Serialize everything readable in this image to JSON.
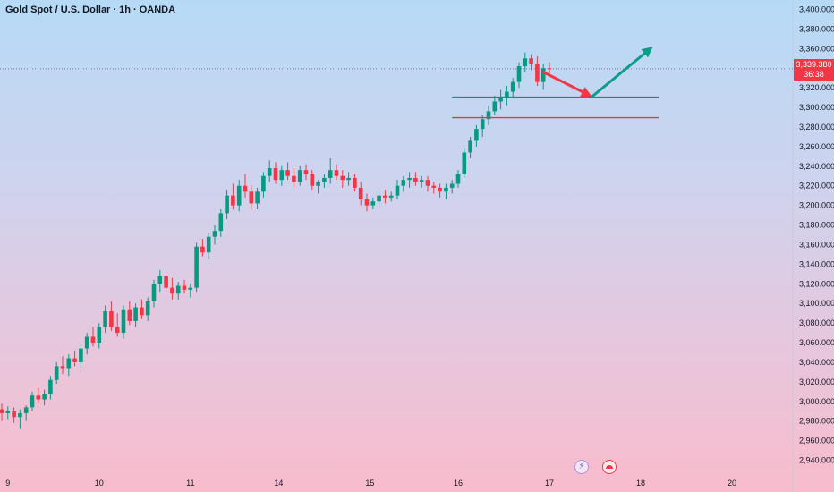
{
  "header": {
    "title": "Gold Spot / U.S. Dollar · 1h · OANDA"
  },
  "price_badge": {
    "price": "3,339.380",
    "countdown": "36:38"
  },
  "colors": {
    "up": "#089981",
    "down": "#f23645",
    "support_line": "#1f8a7e",
    "resistance_line": "#e53935",
    "arrow_down": "#f23645",
    "arrow_up": "#0d9c88"
  },
  "icons": {
    "lightning": "lightning-icon",
    "flag": "flag-icon"
  },
  "chart_data": {
    "type": "candlestick",
    "symbol": "Gold Spot / U.S. Dollar",
    "interval": "1h",
    "source": "OANDA",
    "ylim": [
      2935,
      3405
    ],
    "y_ticks": [
      "3,400.000",
      "3,380.000",
      "3,360.000",
      "3,340.000",
      "3,320.000",
      "3,300.000",
      "3,280.000",
      "3,260.000",
      "3,240.000",
      "3,220.000",
      "3,200.000",
      "3,180.000",
      "3,160.000",
      "3,140.000",
      "3,120.000",
      "3,100.000",
      "3,080.000",
      "3,060.000",
      "3,040.000",
      "3,020.000",
      "3,000.000",
      "2,980.000",
      "2,960.000",
      "2,940.000"
    ],
    "x_ticks": [
      "9",
      "10",
      "11",
      "14",
      "15",
      "16",
      "17",
      "18",
      "20"
    ],
    "current_price": 3339.38,
    "horizontal_lines": [
      {
        "price": 3310.5,
        "color": "#1f8a7e",
        "label": ""
      },
      {
        "price": 3289.5,
        "color": "#e53935",
        "label": ""
      }
    ],
    "annotations": [
      {
        "type": "arrow",
        "direction": "down",
        "from": [
          3339,
          3336
        ],
        "to": [
          3347,
          3311
        ]
      },
      {
        "type": "arrow",
        "direction": "up",
        "from": [
          3347,
          3311
        ],
        "to": [
          3357,
          3362
        ]
      }
    ],
    "candles": [
      [
        2992,
        2998,
        2980,
        2988
      ],
      [
        2988,
        2995,
        2982,
        2990
      ],
      [
        2990,
        2994,
        2978,
        2984
      ],
      [
        2984,
        2992,
        2972,
        2988
      ],
      [
        2988,
        2996,
        2980,
        2994
      ],
      [
        2994,
        3010,
        2990,
        3006
      ],
      [
        3006,
        3014,
        2998,
        3002
      ],
      [
        3002,
        3012,
        2996,
        3008
      ],
      [
        3008,
        3026,
        3002,
        3022
      ],
      [
        3022,
        3040,
        3018,
        3036
      ],
      [
        3036,
        3046,
        3028,
        3034
      ],
      [
        3034,
        3048,
        3026,
        3044
      ],
      [
        3044,
        3052,
        3036,
        3040
      ],
      [
        3040,
        3058,
        3034,
        3054
      ],
      [
        3054,
        3070,
        3048,
        3066
      ],
      [
        3066,
        3076,
        3056,
        3060
      ],
      [
        3060,
        3080,
        3054,
        3076
      ],
      [
        3076,
        3098,
        3070,
        3092
      ],
      [
        3092,
        3102,
        3072,
        3076
      ],
      [
        3076,
        3090,
        3066,
        3070
      ],
      [
        3070,
        3098,
        3064,
        3094
      ],
      [
        3094,
        3102,
        3078,
        3082
      ],
      [
        3082,
        3100,
        3076,
        3096
      ],
      [
        3096,
        3104,
        3084,
        3088
      ],
      [
        3088,
        3106,
        3082,
        3102
      ],
      [
        3102,
        3124,
        3096,
        3120
      ],
      [
        3120,
        3134,
        3112,
        3128
      ],
      [
        3128,
        3132,
        3112,
        3116
      ],
      [
        3116,
        3126,
        3104,
        3110
      ],
      [
        3110,
        3122,
        3104,
        3118
      ],
      [
        3118,
        3124,
        3110,
        3114
      ],
      [
        3114,
        3120,
        3106,
        3116
      ],
      [
        3116,
        3162,
        3112,
        3158
      ],
      [
        3158,
        3166,
        3148,
        3152
      ],
      [
        3152,
        3172,
        3146,
        3168
      ],
      [
        3168,
        3180,
        3160,
        3174
      ],
      [
        3174,
        3196,
        3168,
        3192
      ],
      [
        3192,
        3216,
        3186,
        3210
      ],
      [
        3210,
        3222,
        3196,
        3200
      ],
      [
        3200,
        3226,
        3194,
        3220
      ],
      [
        3220,
        3232,
        3208,
        3214
      ],
      [
        3214,
        3220,
        3196,
        3202
      ],
      [
        3202,
        3218,
        3196,
        3214
      ],
      [
        3214,
        3234,
        3208,
        3230
      ],
      [
        3230,
        3246,
        3224,
        3238
      ],
      [
        3238,
        3244,
        3222,
        3226
      ],
      [
        3226,
        3240,
        3220,
        3236
      ],
      [
        3236,
        3244,
        3226,
        3230
      ],
      [
        3230,
        3238,
        3218,
        3224
      ],
      [
        3224,
        3240,
        3220,
        3236
      ],
      [
        3236,
        3242,
        3226,
        3232
      ],
      [
        3232,
        3236,
        3216,
        3220
      ],
      [
        3220,
        3226,
        3212,
        3224
      ],
      [
        3224,
        3232,
        3218,
        3228
      ],
      [
        3228,
        3248,
        3222,
        3236
      ],
      [
        3236,
        3242,
        3226,
        3230
      ],
      [
        3230,
        3236,
        3218,
        3226
      ],
      [
        3226,
        3234,
        3220,
        3228
      ],
      [
        3228,
        3232,
        3214,
        3218
      ],
      [
        3218,
        3224,
        3200,
        3206
      ],
      [
        3206,
        3212,
        3194,
        3200
      ],
      [
        3200,
        3208,
        3196,
        3204
      ],
      [
        3204,
        3214,
        3198,
        3210
      ],
      [
        3210,
        3216,
        3202,
        3208
      ],
      [
        3208,
        3214,
        3204,
        3210
      ],
      [
        3210,
        3226,
        3206,
        3220
      ],
      [
        3220,
        3230,
        3214,
        3226
      ],
      [
        3226,
        3234,
        3218,
        3228
      ],
      [
        3228,
        3234,
        3220,
        3224
      ],
      [
        3224,
        3230,
        3218,
        3226
      ],
      [
        3226,
        3230,
        3214,
        3220
      ],
      [
        3220,
        3224,
        3212,
        3218
      ],
      [
        3218,
        3222,
        3208,
        3214
      ],
      [
        3214,
        3222,
        3206,
        3218
      ],
      [
        3218,
        3226,
        3212,
        3222
      ],
      [
        3222,
        3236,
        3218,
        3232
      ],
      [
        3232,
        3258,
        3228,
        3254
      ],
      [
        3254,
        3270,
        3248,
        3266
      ],
      [
        3266,
        3282,
        3260,
        3278
      ],
      [
        3278,
        3292,
        3270,
        3288
      ],
      [
        3288,
        3302,
        3282,
        3296
      ],
      [
        3296,
        3312,
        3292,
        3306
      ],
      [
        3306,
        3318,
        3298,
        3310
      ],
      [
        3310,
        3322,
        3302,
        3316
      ],
      [
        3316,
        3330,
        3310,
        3326
      ],
      [
        3326,
        3346,
        3320,
        3342
      ],
      [
        3342,
        3356,
        3336,
        3350
      ],
      [
        3350,
        3354,
        3338,
        3344
      ],
      [
        3344,
        3352,
        3322,
        3326
      ],
      [
        3326,
        3344,
        3318,
        3340
      ],
      [
        3340,
        3346,
        3332,
        3339
      ]
    ]
  }
}
